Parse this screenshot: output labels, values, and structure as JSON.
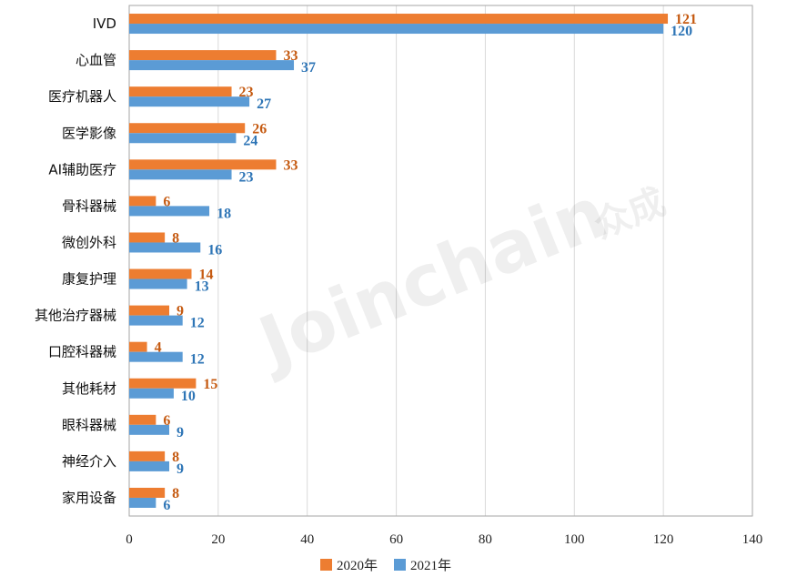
{
  "watermark": {
    "text": "Joinchain",
    "text_cn": "众成"
  },
  "colors": {
    "s2020": "#ED7D31",
    "s2021": "#5B9BD5",
    "label2020": "#C55A11",
    "label2021": "#2E75B6",
    "grid": "#D9D9D9",
    "frame": "#A6A6A6"
  },
  "chart_data": {
    "type": "bar",
    "orientation": "horizontal",
    "title": "",
    "xlabel": "",
    "ylabel": "",
    "xlim": [
      0,
      140
    ],
    "xticks": [
      0,
      20,
      40,
      60,
      80,
      100,
      120,
      140
    ],
    "grid": "vertical",
    "legend_position": "bottom",
    "categories": [
      "IVD",
      "心血管",
      "医疗机器人",
      "医学影像",
      "AI辅助医疗",
      "骨科器械",
      "微创外科",
      "康复护理",
      "其他治疗器械",
      "口腔科器械",
      "其他耗材",
      "眼科器械",
      "神经介入",
      "家用设备"
    ],
    "series": [
      {
        "name": "2020年",
        "values": [
          121,
          33,
          23,
          26,
          33,
          6,
          8,
          14,
          9,
          4,
          15,
          6,
          8,
          8
        ]
      },
      {
        "name": "2021年",
        "values": [
          120,
          37,
          27,
          24,
          23,
          18,
          16,
          13,
          12,
          12,
          10,
          9,
          9,
          6
        ]
      }
    ]
  }
}
